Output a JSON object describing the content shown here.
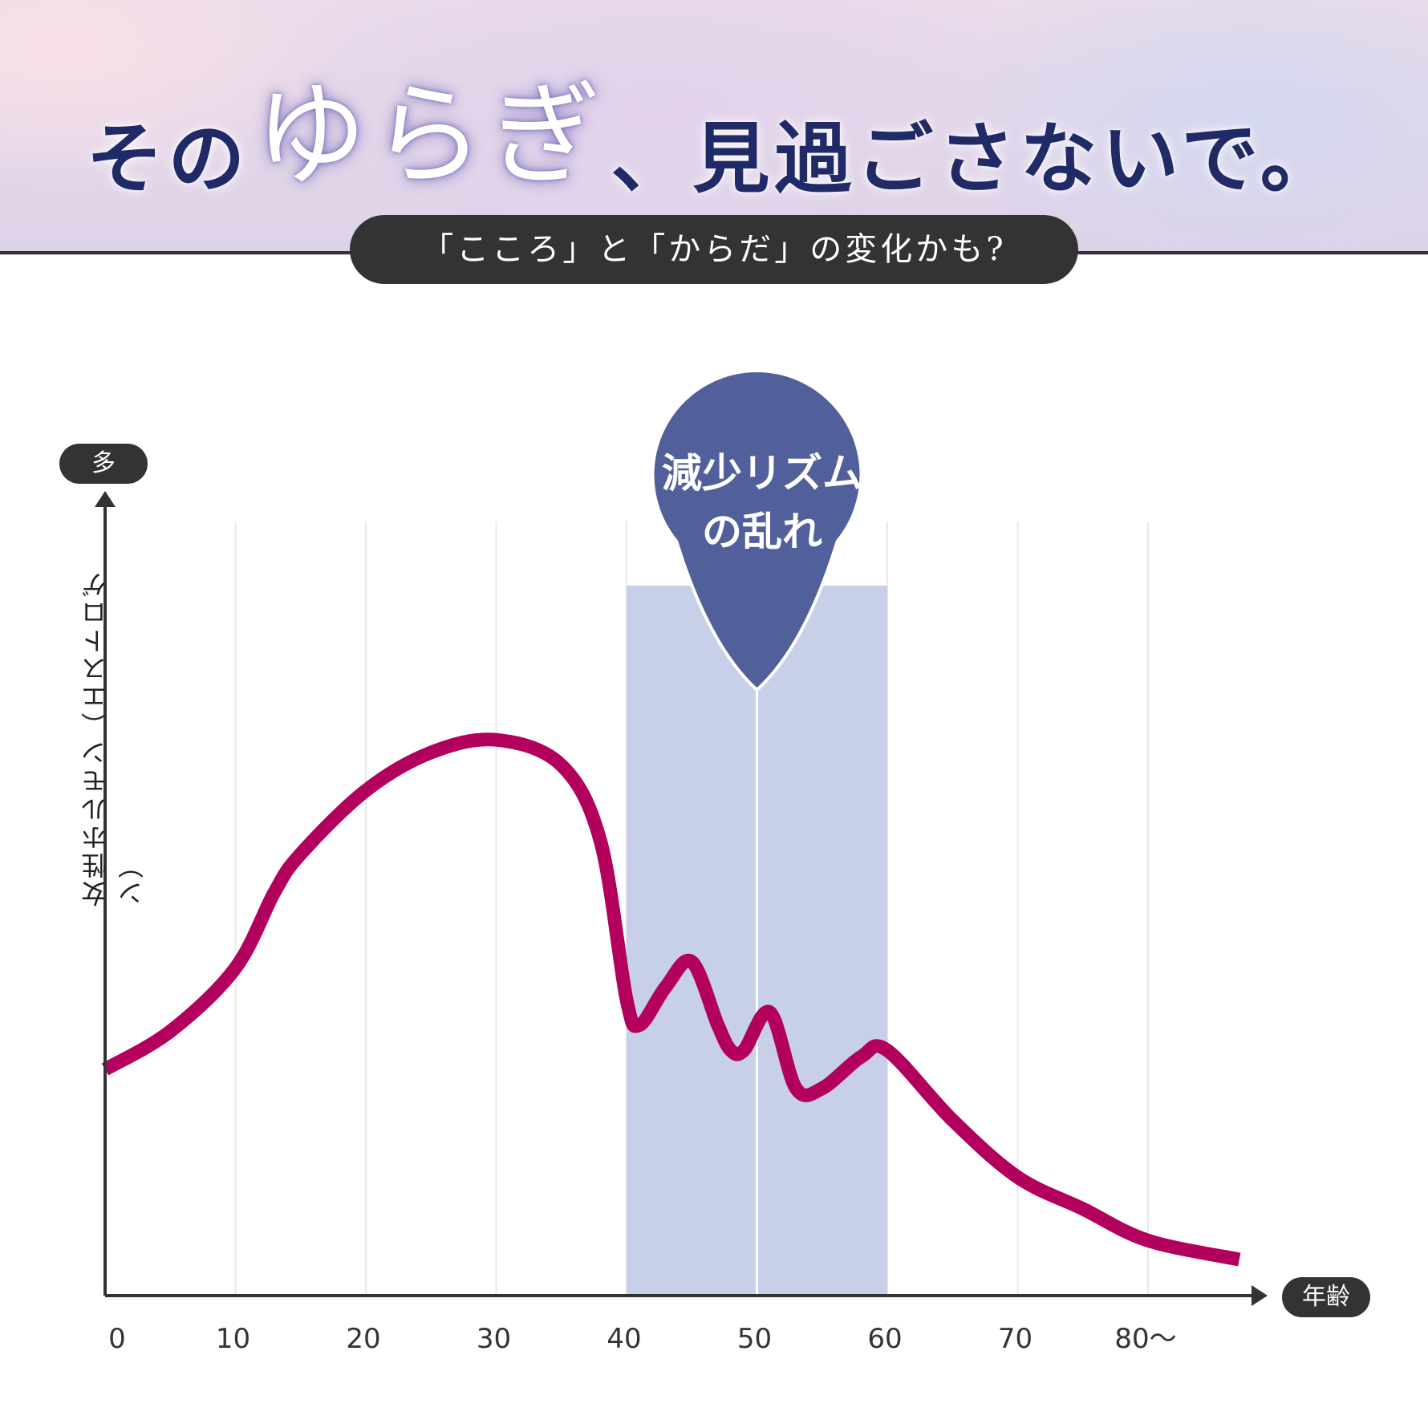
{
  "header": {
    "title_pre": "その",
    "title_emph": "ゆらぎ",
    "title_post": "、見過ごさないで。",
    "subtitle": "「こころ」と「からだ」の変化かも?"
  },
  "chart_data": {
    "type": "line",
    "x": [
      0,
      5,
      10,
      13,
      15,
      20,
      25,
      30,
      35,
      38,
      40,
      41,
      43,
      45,
      47,
      48,
      49,
      51,
      53,
      55,
      58,
      60,
      65,
      70,
      75,
      80,
      87
    ],
    "y": [
      30,
      36,
      46,
      58,
      64,
      74,
      80,
      82,
      78,
      66,
      41,
      37,
      43,
      47,
      37,
      33,
      33,
      39,
      27,
      27,
      32,
      33,
      22,
      13,
      8,
      3,
      0
    ],
    "ylim": [
      0,
      100
    ],
    "xlim": [
      0,
      89
    ],
    "x_ticks": [
      "0",
      "10",
      "20",
      "30",
      "40",
      "50",
      "60",
      "70",
      "80〜"
    ],
    "x_tick_values": [
      0,
      10,
      20,
      30,
      40,
      50,
      60,
      70,
      80
    ],
    "xlabel": "年齢",
    "y_top_label": "多",
    "ylabel": "女性ホルモン（エストロゲン）",
    "highlight": {
      "from": 40,
      "to": 60,
      "label_line1": "減少リズム",
      "label_line2": "の乱れ"
    },
    "colors": {
      "line": "#b3005c",
      "highlight": "#c8cfe8",
      "badge": "#515f9b",
      "axis": "#333333",
      "grid": "#e8e8ee"
    }
  }
}
